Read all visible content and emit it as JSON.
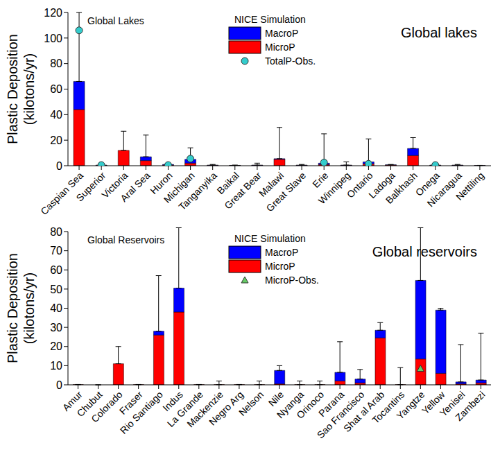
{
  "chart_data": [
    {
      "type": "bar",
      "stacked": true,
      "title": "Global lakes",
      "annotation": "Global Lakes",
      "legend_title": "NICE Simulation",
      "legend": "top",
      "y_label": "Plastic Deposition (kilotons/yr)",
      "categories": [
        "Caspian Sea",
        "Superior",
        "Victoria",
        "Aral Sea",
        "Huron",
        "Michigan",
        "Tanganyika",
        "Baikal",
        "Great Bear",
        "Malawi",
        "Great Slave",
        "Erie",
        "Winnipeg",
        "Ontario",
        "Ladoga",
        "Balkhash",
        "Onega",
        "Nicaragua",
        "Nettiling"
      ],
      "series": [
        {
          "name": "MacroP",
          "color": "#0000ff",
          "values": [
            22,
            0.2,
            0,
            3,
            0.5,
            3,
            0.2,
            0.1,
            0.2,
            0.5,
            0.2,
            1,
            0.2,
            1.5,
            0.2,
            5.5,
            0.2,
            0.2,
            0.1
          ]
        },
        {
          "name": "MicroP",
          "color": "#ff0000",
          "values": [
            44,
            0.3,
            12,
            4,
            0.5,
            2,
            0.3,
            0.2,
            0.3,
            5,
            0.3,
            1,
            0.3,
            1.5,
            0.5,
            8,
            0.3,
            0.3,
            0.1
          ]
        },
        {
          "name": "TotalP-Obs.",
          "type": "scatter",
          "marker": "circle",
          "color": "#33cccc",
          "values": [
            106,
            0.5,
            null,
            null,
            0.5,
            5.5,
            null,
            null,
            null,
            null,
            null,
            2.5,
            null,
            1.5,
            null,
            null,
            0.5,
            null,
            null
          ]
        }
      ],
      "errors": [
        54,
        0.5,
        15,
        17,
        0.5,
        9,
        0.5,
        0.2,
        1.5,
        24.5,
        0.5,
        23,
        2.5,
        18,
        0.3,
        8.5,
        0.5,
        0.5,
        0.1
      ],
      "ylim": [
        0,
        120
      ],
      "yticks": [
        0,
        20,
        40,
        60,
        80,
        100,
        120
      ],
      "grid": false
    },
    {
      "type": "bar",
      "stacked": true,
      "title": "Global reservoirs",
      "annotation": "Global Reservoirs",
      "legend_title": "NICE Simulation",
      "legend": "top",
      "y_label": "Plastic Deposition (kilotons/yr)",
      "categories": [
        "Amur",
        "Chubut",
        "Colorado",
        "Fraser",
        "Rio Santiago",
        "Indus",
        "La Grande",
        "Mackenzie",
        "Negro Arg",
        "Nelson",
        "Nile",
        "Nyanga",
        "Orinoco",
        "Parana",
        "Sao Francisco",
        "Shat al Arab",
        "Tocantins",
        "Yangtze",
        "Yellow",
        "Yenisei",
        "Zambezi"
      ],
      "series": [
        {
          "name": "MacroP",
          "color": "#0000ff",
          "values": [
            0,
            0,
            0,
            0,
            2,
            12.5,
            0,
            0,
            0,
            0,
            7,
            0,
            0,
            4.5,
            2,
            4,
            0,
            41,
            33,
            1,
            1.5
          ]
        },
        {
          "name": "MicroP",
          "color": "#ff0000",
          "values": [
            0.1,
            0,
            11,
            0.1,
            26,
            38,
            0.1,
            0.1,
            0.1,
            0.1,
            0.5,
            0.1,
            0.1,
            2,
            1,
            24.5,
            0.1,
            13.5,
            6,
            0.5,
            1
          ]
        },
        {
          "name": "MicroP-Obs.",
          "type": "scatter",
          "marker": "triangle",
          "color": "#66cc66",
          "values": [
            null,
            null,
            null,
            null,
            null,
            null,
            null,
            null,
            null,
            null,
            null,
            null,
            null,
            null,
            null,
            null,
            null,
            8.5,
            null,
            null,
            null
          ]
        }
      ],
      "errors": [
        0.1,
        0,
        9,
        0.1,
        29,
        31.5,
        0.1,
        1.9,
        0.1,
        1.9,
        2.5,
        1.9,
        1.9,
        16,
        5,
        4,
        8.9,
        27.5,
        1,
        19.5,
        24.5
      ],
      "ylim": [
        0,
        80
      ],
      "yticks": [
        0,
        10,
        20,
        30,
        40,
        50,
        60,
        70,
        80
      ],
      "grid": false
    }
  ]
}
